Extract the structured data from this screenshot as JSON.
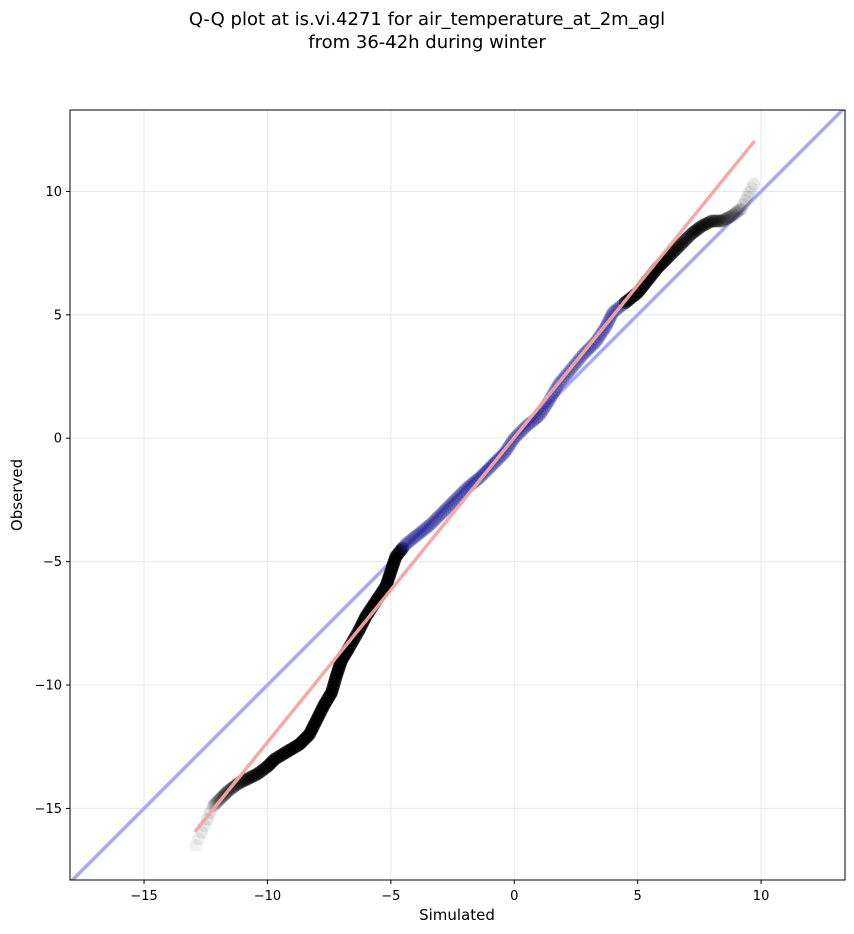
{
  "title_line1": "Q-Q plot at is.vi.4271 for air_temperature_at_2m_agl",
  "title_line2": "from 36-42h during winter",
  "chart_data": {
    "type": "scatter",
    "title": "Q-Q plot at is.vi.4271 for air_temperature_at_2m_agl\nfrom 36-42h during winter",
    "xlabel": "Simulated",
    "ylabel": "Observed",
    "xlim": [
      -18,
      13.4
    ],
    "ylim": [
      -17.9,
      13.3
    ],
    "xticks": [
      -15,
      -10,
      -5,
      0,
      5,
      10
    ],
    "yticks": [
      -15,
      -10,
      -5,
      0,
      5,
      10
    ],
    "tick_labels": [
      "−15",
      "−10",
      "−5",
      "0",
      "5",
      "10"
    ],
    "grid": true,
    "colors": {
      "identity": "#aaaaf2",
      "fit": "#f4a6a6",
      "points": "#000000",
      "center": "#1a1a8c"
    },
    "identity_line": {
      "x": [
        -18,
        13.4
      ],
      "y": [
        -18,
        13.4
      ]
    },
    "fit_line": {
      "x": [
        -12.9,
        9.7
      ],
      "y": [
        -15.9,
        12.0
      ]
    },
    "quantile_points": [
      {
        "x": -12.9,
        "y": -16.5
      },
      {
        "x": -12.2,
        "y": -14.9
      },
      {
        "x": -11.9,
        "y": -14.6
      },
      {
        "x": -11.6,
        "y": -14.3
      },
      {
        "x": -11.2,
        "y": -14.0
      },
      {
        "x": -10.8,
        "y": -13.8
      },
      {
        "x": -10.4,
        "y": -13.6
      },
      {
        "x": -10.0,
        "y": -13.3
      },
      {
        "x": -9.7,
        "y": -13.0
      },
      {
        "x": -9.2,
        "y": -12.7
      },
      {
        "x": -8.7,
        "y": -12.4
      },
      {
        "x": -8.3,
        "y": -12.0
      },
      {
        "x": -8.0,
        "y": -11.4
      },
      {
        "x": -7.7,
        "y": -10.8
      },
      {
        "x": -7.4,
        "y": -10.3
      },
      {
        "x": -7.2,
        "y": -9.6
      },
      {
        "x": -7.0,
        "y": -9.0
      },
      {
        "x": -6.7,
        "y": -8.5
      },
      {
        "x": -6.3,
        "y": -7.8
      },
      {
        "x": -6.0,
        "y": -7.2
      },
      {
        "x": -5.6,
        "y": -6.6
      },
      {
        "x": -5.2,
        "y": -6.0
      },
      {
        "x": -5.0,
        "y": -5.4
      },
      {
        "x": -4.8,
        "y": -4.8
      },
      {
        "x": -4.4,
        "y": -4.3
      },
      {
        "x": -3.9,
        "y": -3.9
      },
      {
        "x": -3.4,
        "y": -3.5
      },
      {
        "x": -2.9,
        "y": -3.0
      },
      {
        "x": -2.4,
        "y": -2.5
      },
      {
        "x": -1.9,
        "y": -2.0
      },
      {
        "x": -1.4,
        "y": -1.6
      },
      {
        "x": -0.9,
        "y": -1.1
      },
      {
        "x": -0.4,
        "y": -0.6
      },
      {
        "x": 0.0,
        "y": 0.0
      },
      {
        "x": 0.5,
        "y": 0.5
      },
      {
        "x": 1.0,
        "y": 0.9
      },
      {
        "x": 1.4,
        "y": 1.5
      },
      {
        "x": 1.8,
        "y": 2.2
      },
      {
        "x": 2.3,
        "y": 2.8
      },
      {
        "x": 2.8,
        "y": 3.4
      },
      {
        "x": 3.3,
        "y": 3.9
      },
      {
        "x": 3.7,
        "y": 4.5
      },
      {
        "x": 4.0,
        "y": 5.1
      },
      {
        "x": 4.5,
        "y": 5.5
      },
      {
        "x": 5.0,
        "y": 5.9
      },
      {
        "x": 5.4,
        "y": 6.4
      },
      {
        "x": 5.8,
        "y": 6.9
      },
      {
        "x": 6.2,
        "y": 7.3
      },
      {
        "x": 6.7,
        "y": 7.8
      },
      {
        "x": 7.2,
        "y": 8.3
      },
      {
        "x": 7.6,
        "y": 8.6
      },
      {
        "x": 8.0,
        "y": 8.8
      },
      {
        "x": 8.4,
        "y": 8.8
      },
      {
        "x": 8.8,
        "y": 9.0
      },
      {
        "x": 9.2,
        "y": 9.3
      },
      {
        "x": 9.7,
        "y": 10.3
      }
    ]
  }
}
